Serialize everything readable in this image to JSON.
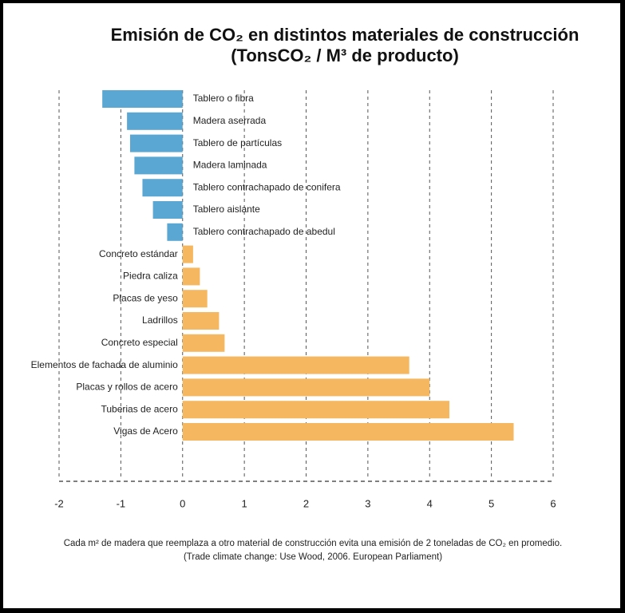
{
  "chart_data": {
    "type": "bar",
    "orientation": "horizontal",
    "title": "Emisión de CO₂ en distintos materiales de construcción",
    "subtitle": "(TonsCO₂ / M³ de producto)",
    "categories": [
      "Tablero o fibra",
      "Madera aserrada",
      "Tablero de partículas",
      "Madera laminada",
      "Tablero contrachapado de conifera",
      "Tablero aislante",
      "Tablero contrachapado de abedul",
      "Concreto estándar",
      "Piedra caliza",
      "Placas de yeso",
      "Ladrillos",
      "Concreto especial",
      "Elementos de fachada de aluminio",
      "Placas y rollos de acero",
      "Tuberias de acero",
      "Vigas de Acero"
    ],
    "values": [
      -1.3,
      -0.9,
      -0.85,
      -0.78,
      -0.65,
      -0.48,
      -0.25,
      0.17,
      0.28,
      0.4,
      0.59,
      0.68,
      3.67,
      4.0,
      4.32,
      5.36
    ],
    "colors": [
      "#5ba7d3",
      "#5ba7d3",
      "#5ba7d3",
      "#5ba7d3",
      "#5ba7d3",
      "#5ba7d3",
      "#5ba7d3",
      "#f5b860",
      "#f5b860",
      "#f5b860",
      "#f5b860",
      "#f5b860",
      "#f5b860",
      "#f5b860",
      "#f5b860",
      "#f5b860"
    ],
    "xlim": [
      -2,
      6
    ],
    "xticks": [
      -2,
      -1,
      0,
      1,
      2,
      3,
      4,
      5,
      6
    ],
    "grid": true,
    "notes": [
      "Cada m² de madera que reemplaza a otro material de construcción evita una emisión de 2 toneladas de CO₂ en promedio.",
      "(Trade climate change: Use Wood, 2006. European Parliament)"
    ]
  }
}
